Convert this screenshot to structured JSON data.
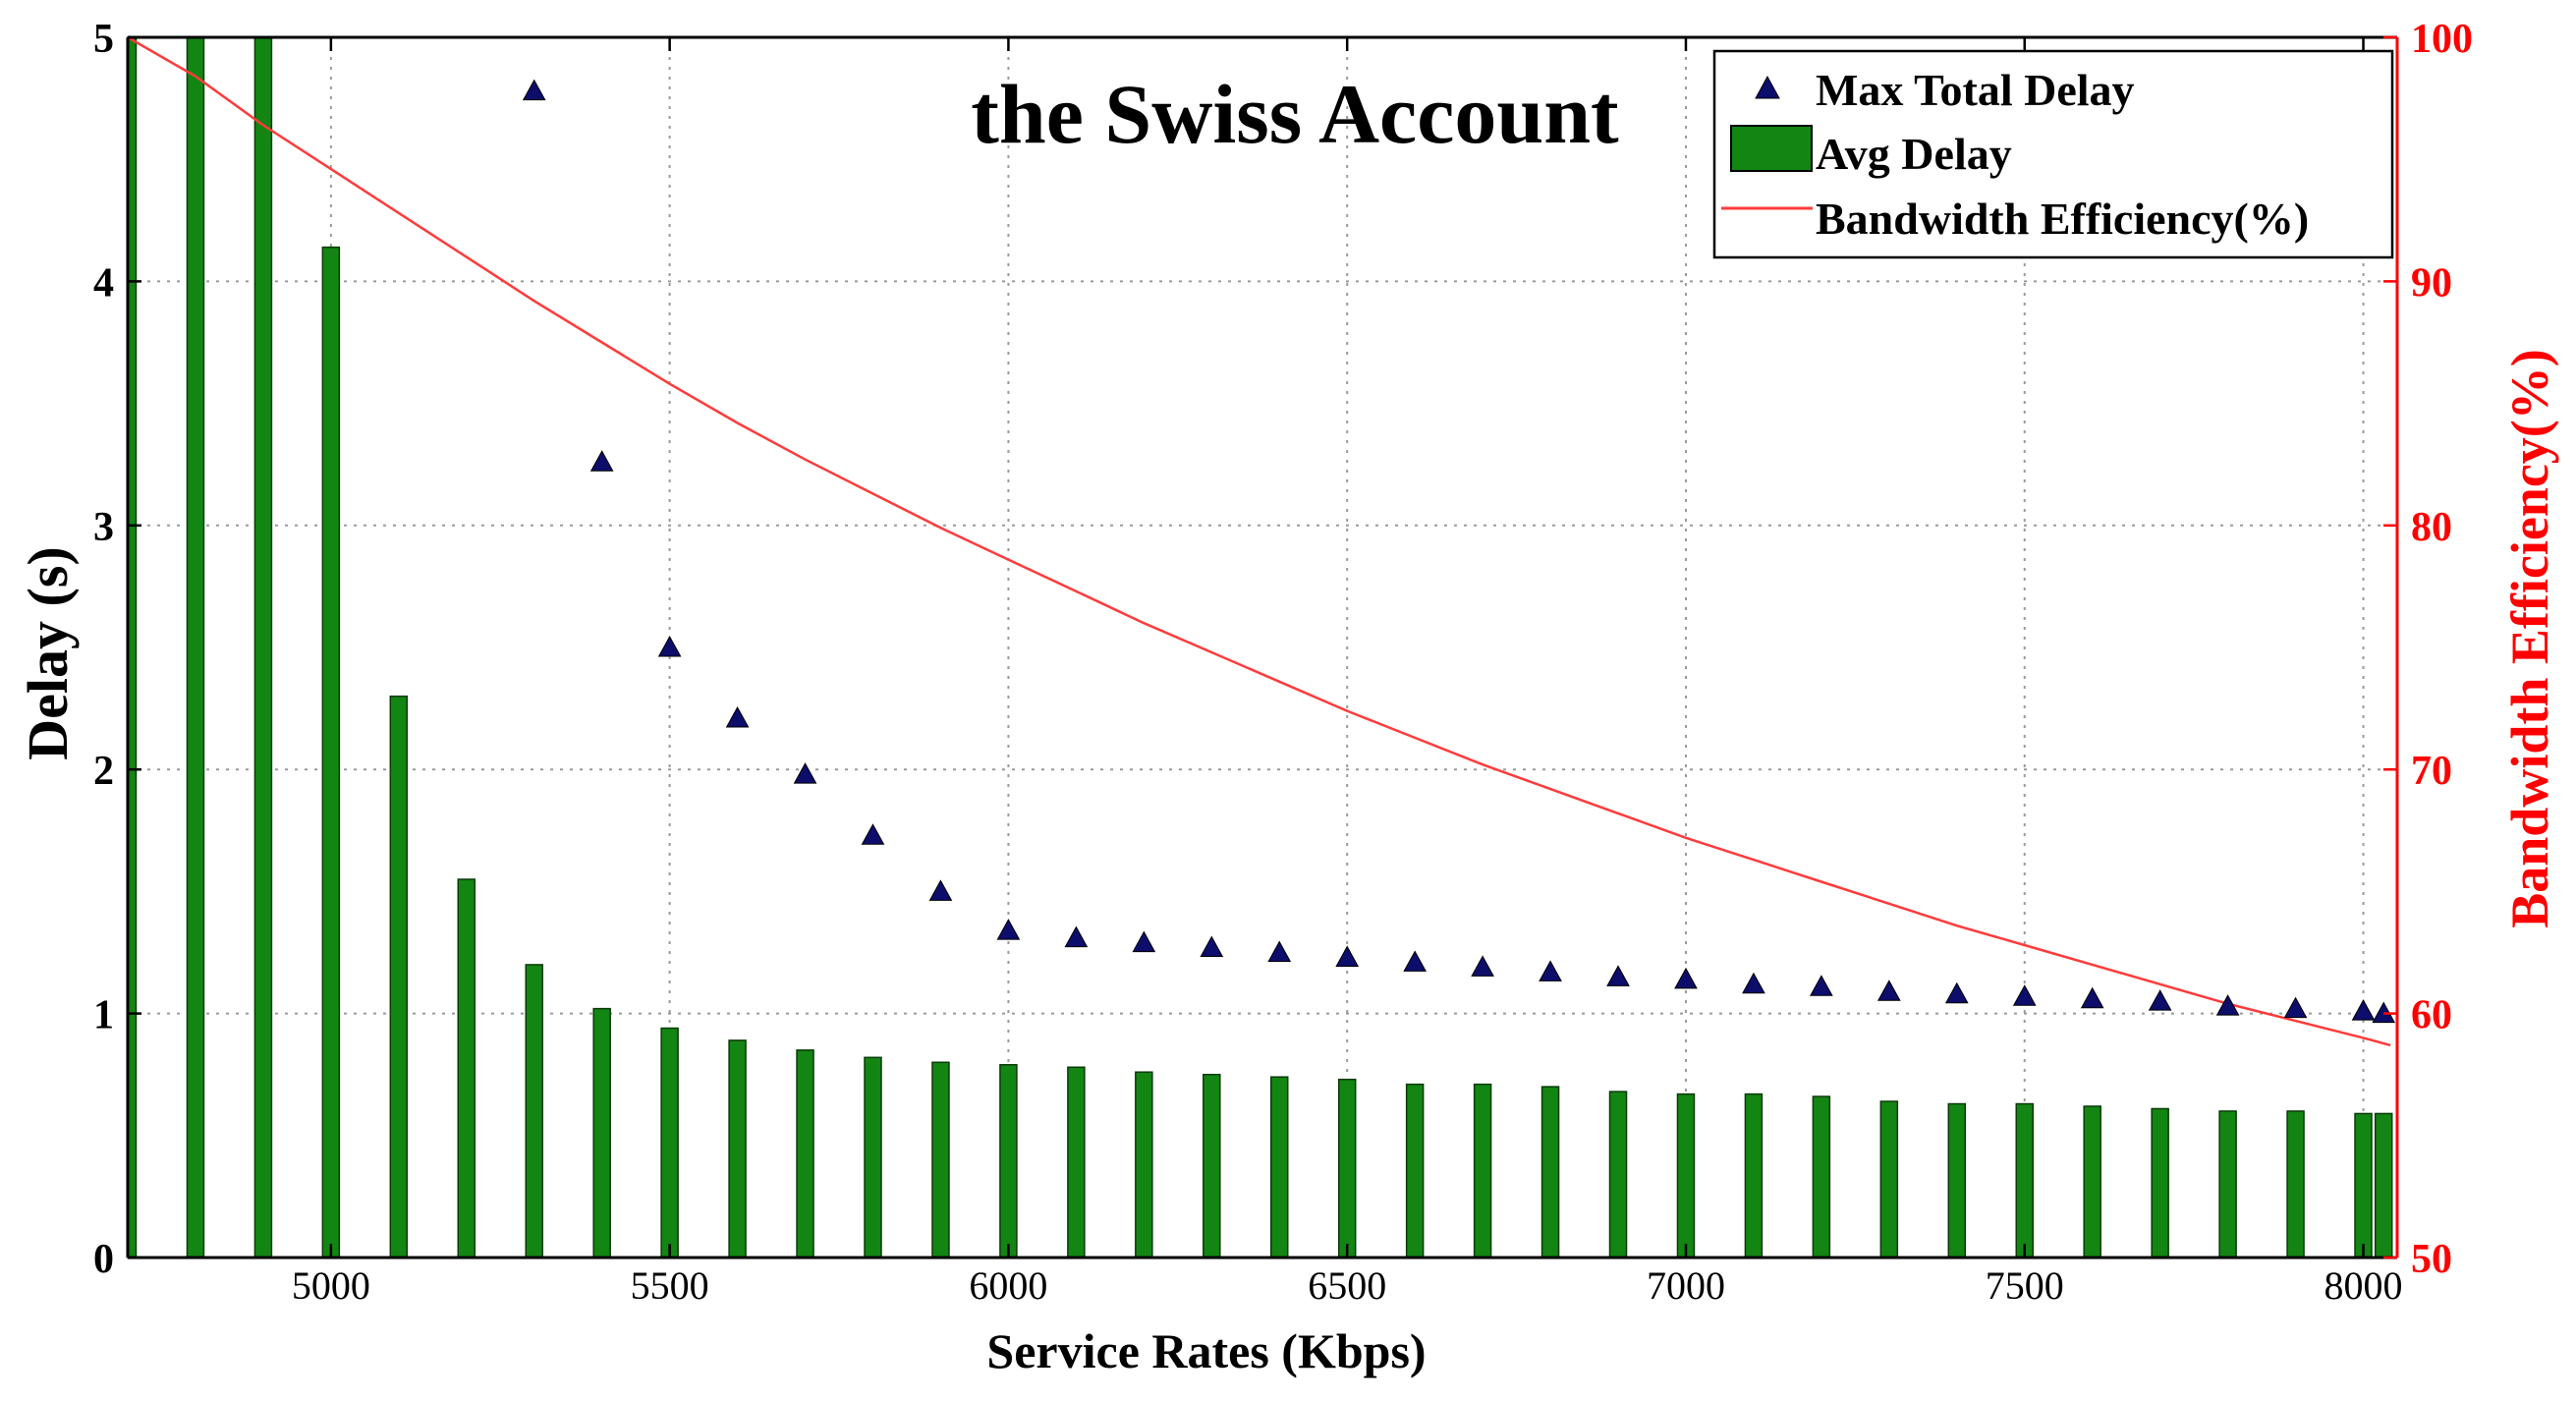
{
  "chart_data": {
    "type": "bar",
    "title": "the Swiss Account",
    "xlabel": "Service Rates (Kbps)",
    "ylabel": "Delay (s)",
    "y2label": "Bandwidth Efficiency(%)",
    "xlim": [
      4700,
      8050
    ],
    "ylim": [
      0,
      5
    ],
    "y2lim": [
      50,
      100
    ],
    "grid": true,
    "legend_position": "top-right",
    "x_ticks": [
      5000,
      5500,
      6000,
      6500,
      7000,
      7500,
      8000
    ],
    "y_ticks": [
      0,
      1,
      2,
      3,
      4,
      5
    ],
    "y2_ticks": [
      50,
      60,
      70,
      80,
      90,
      100
    ],
    "colors": {
      "bars": "#138513",
      "markers": "#0d0d6b",
      "line": "#ff3b3b",
      "right_axis": "#ff0000",
      "grid": "#9a9a9a"
    },
    "series": [
      {
        "name": "Max Total Delay",
        "kind": "scatter",
        "x": [
          5300,
          5400,
          5500,
          5600,
          5700,
          5800,
          5900,
          6000,
          6100,
          6200,
          6300,
          6400,
          6500,
          6600,
          6700,
          6800,
          6900,
          7000,
          7100,
          7200,
          7300,
          7400,
          7500,
          7600,
          7700,
          7800,
          7900,
          8000,
          8030
        ],
        "values": [
          4.78,
          3.26,
          2.5,
          2.21,
          1.98,
          1.73,
          1.5,
          1.34,
          1.31,
          1.29,
          1.27,
          1.25,
          1.23,
          1.21,
          1.19,
          1.17,
          1.15,
          1.14,
          1.12,
          1.11,
          1.09,
          1.08,
          1.07,
          1.06,
          1.05,
          1.03,
          1.02,
          1.01,
          1.0
        ]
      },
      {
        "name": "Avg Delay",
        "kind": "bar",
        "x": [
          4700,
          4800,
          4900,
          5000,
          5100,
          5200,
          5300,
          5400,
          5500,
          5600,
          5700,
          5800,
          5900,
          6000,
          6100,
          6200,
          6300,
          6400,
          6500,
          6600,
          6700,
          6800,
          6900,
          7000,
          7100,
          7200,
          7300,
          7400,
          7500,
          7600,
          7700,
          7800,
          7900,
          8000,
          8030
        ],
        "values": [
          5,
          5,
          5,
          4.14,
          2.3,
          1.55,
          1.2,
          1.02,
          0.94,
          0.89,
          0.85,
          0.82,
          0.8,
          0.79,
          0.78,
          0.76,
          0.75,
          0.74,
          0.73,
          0.71,
          0.71,
          0.7,
          0.68,
          0.67,
          0.67,
          0.66,
          0.64,
          0.63,
          0.63,
          0.62,
          0.61,
          0.6,
          0.6,
          0.59,
          0.59
        ]
      },
      {
        "name": "Bandwidth Efficiency(%)",
        "kind": "line",
        "axis": "right",
        "x": [
          4700,
          4800,
          4900,
          5000,
          5100,
          5200,
          5300,
          5400,
          5500,
          5600,
          5700,
          5800,
          5900,
          6000,
          6100,
          6200,
          6300,
          6400,
          6500,
          6600,
          6700,
          6800,
          6900,
          7000,
          7100,
          7200,
          7300,
          7400,
          7500,
          7600,
          7700,
          7800,
          7900,
          8000,
          8040
        ],
        "values": [
          100,
          98.4,
          96.4,
          94.6,
          92.8,
          91.0,
          89.2,
          87.5,
          85.8,
          84.2,
          82.7,
          81.3,
          79.9,
          78.6,
          77.3,
          76.0,
          74.8,
          73.6,
          72.4,
          71.3,
          70.2,
          69.2,
          68.2,
          67.2,
          66.3,
          65.4,
          64.5,
          63.6,
          62.8,
          62.0,
          61.2,
          60.4,
          59.7,
          59.0,
          58.7
        ]
      }
    ]
  }
}
